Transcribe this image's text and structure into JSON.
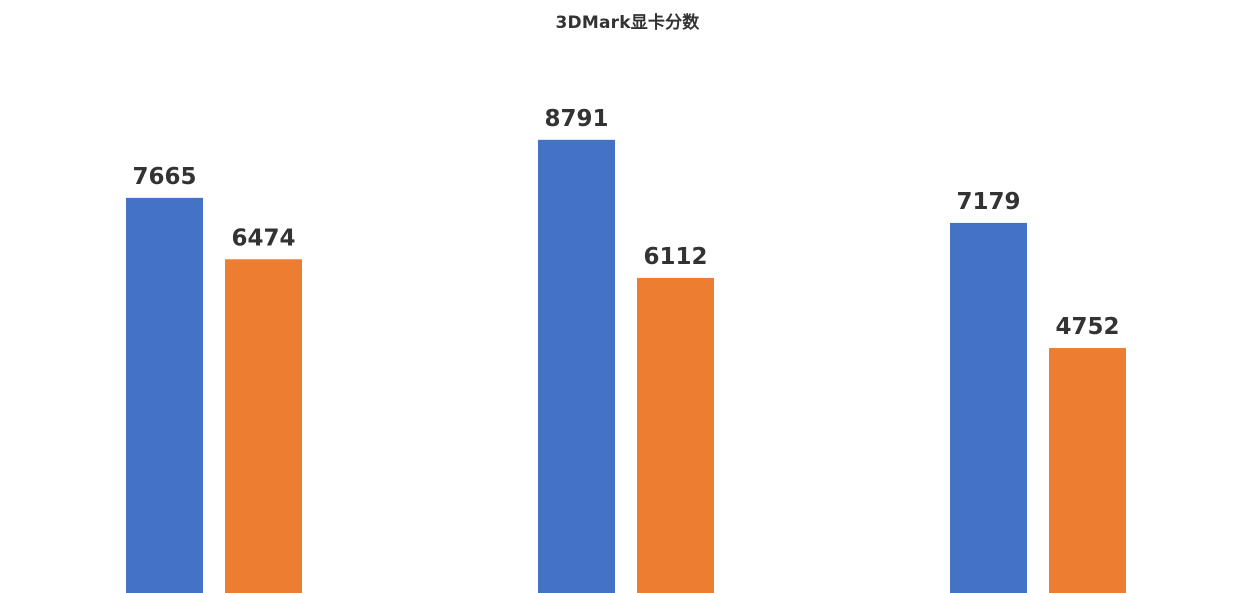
{
  "chart_data": {
    "type": "bar",
    "title": "3DMark显卡分数",
    "categories": [
      "",
      "",
      ""
    ],
    "series": [
      {
        "values": [
          7665,
          8791,
          7179
        ],
        "color": "#4472C4"
      },
      {
        "values": [
          6474,
          6112,
          4752
        ],
        "color": "#ED7D31"
      }
    ],
    "ylim": [
      0,
      10500
    ],
    "grid": false,
    "legend": "none"
  }
}
